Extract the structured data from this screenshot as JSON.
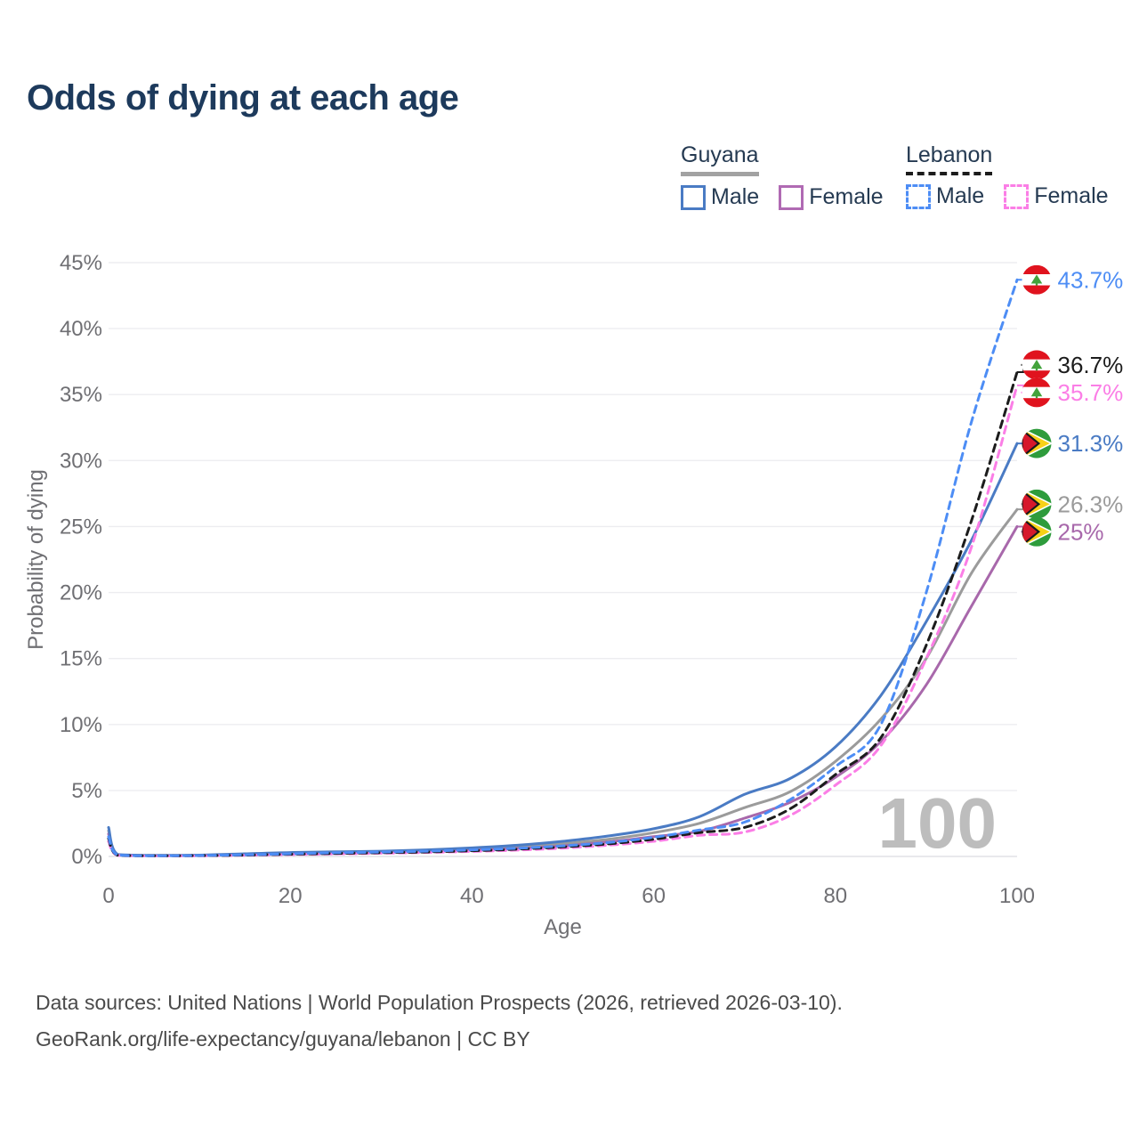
{
  "title": "Odds of dying at each age",
  "legend": {
    "groups": [
      {
        "label": "Guyana",
        "line_dashed": false,
        "line_color": "#a2a2a2",
        "items": [
          {
            "label": "Male",
            "color": "#4a7bc4",
            "dashed": false
          },
          {
            "label": "Female",
            "color": "#b06ab3",
            "dashed": false
          }
        ]
      },
      {
        "label": "Lebanon",
        "line_dashed": true,
        "line_color": "#1c1c1c",
        "items": [
          {
            "label": "Male",
            "color": "#4d8df5",
            "dashed": true
          },
          {
            "label": "Female",
            "color": "#fb7ee6",
            "dashed": true
          }
        ]
      }
    ]
  },
  "chart_data": {
    "type": "line",
    "title": "Odds of dying at each age",
    "xlabel": "Age",
    "ylabel": "Probability of dying",
    "xlim": [
      0,
      100
    ],
    "ylim": [
      0,
      45
    ],
    "x_ticks": [
      0,
      20,
      40,
      60,
      80,
      100
    ],
    "y_ticks": [
      0,
      5,
      10,
      15,
      20,
      25,
      30,
      35,
      40,
      45
    ],
    "y_tick_suffix": "%",
    "grid": "horizontal",
    "legend_position": "top-right",
    "watermark_age": "100",
    "ages": [
      0,
      1,
      5,
      10,
      15,
      20,
      25,
      30,
      35,
      40,
      45,
      50,
      55,
      60,
      65,
      70,
      75,
      80,
      85,
      90,
      95,
      100
    ],
    "series": [
      {
        "name": "Guyana (both sexes)",
        "country": "Guyana",
        "sex": "Both",
        "color": "#9b9b9b",
        "dashed": false,
        "flag": "guyana",
        "end_label": "26.3%",
        "values": [
          1.95,
          0.13,
          0.07,
          0.09,
          0.16,
          0.24,
          0.29,
          0.34,
          0.42,
          0.55,
          0.72,
          0.97,
          1.3,
          1.8,
          2.5,
          3.7,
          4.9,
          7.2,
          10.4,
          15.0,
          21.5,
          26.3
        ]
      },
      {
        "name": "Guyana Female",
        "country": "Guyana",
        "sex": "Female",
        "color": "#a868ab",
        "dashed": false,
        "flag": "guyana",
        "end_label": "25%",
        "values": [
          1.7,
          0.12,
          0.06,
          0.08,
          0.12,
          0.18,
          0.22,
          0.28,
          0.35,
          0.45,
          0.6,
          0.8,
          1.1,
          1.5,
          1.9,
          2.9,
          4.1,
          6.0,
          8.7,
          13.0,
          19.0,
          25.0
        ]
      },
      {
        "name": "Guyana Male",
        "country": "Guyana",
        "sex": "Male",
        "color": "#4a7bc4",
        "dashed": false,
        "flag": "guyana",
        "end_label": "31.3%",
        "values": [
          2.2,
          0.15,
          0.08,
          0.1,
          0.2,
          0.3,
          0.35,
          0.4,
          0.5,
          0.65,
          0.85,
          1.15,
          1.55,
          2.1,
          3.0,
          4.7,
          5.9,
          8.3,
          12.2,
          17.8,
          24.0,
          31.3
        ]
      },
      {
        "name": "Lebanon Female",
        "country": "Lebanon",
        "sex": "Female",
        "color": "#fb7ee6",
        "dashed": true,
        "flag": "lebanon",
        "end_label": "35.7%",
        "values": [
          1.15,
          0.08,
          0.04,
          0.05,
          0.09,
          0.14,
          0.19,
          0.24,
          0.3,
          0.38,
          0.48,
          0.63,
          0.85,
          1.15,
          1.6,
          1.85,
          3.1,
          5.4,
          8.4,
          15.0,
          23.5,
          35.7
        ]
      },
      {
        "name": "Lebanon (both sexes)",
        "country": "Lebanon",
        "sex": "Both",
        "color": "#1c1c1c",
        "dashed": true,
        "flag": "lebanon",
        "end_label": "36.7%",
        "values": [
          1.35,
          0.09,
          0.05,
          0.06,
          0.1,
          0.17,
          0.23,
          0.28,
          0.34,
          0.43,
          0.55,
          0.72,
          0.95,
          1.3,
          1.8,
          2.2,
          3.6,
          6.2,
          9.0,
          16.0,
          25.5,
          36.7
        ]
      },
      {
        "name": "Lebanon Male",
        "country": "Lebanon",
        "sex": "Male",
        "color": "#4d8df5",
        "dashed": true,
        "flag": "lebanon",
        "end_label": "43.7%",
        "values": [
          1.5,
          0.1,
          0.05,
          0.07,
          0.12,
          0.2,
          0.28,
          0.33,
          0.4,
          0.5,
          0.62,
          0.8,
          1.05,
          1.45,
          2.0,
          2.6,
          4.3,
          6.8,
          10.0,
          20.0,
          33.0,
          43.7
        ]
      }
    ],
    "flag_colors": {
      "lebanon_red": "#e0131e",
      "lebanon_white": "#ffffff",
      "cedar_green": "#43a33c",
      "guyana_green": "#2e9c3c",
      "guyana_gold": "#f7d117",
      "guyana_red": "#d6182c",
      "guyana_black": "#17191c"
    }
  },
  "footer": {
    "line1": "Data sources: United Nations | World Population Prospects (2026, retrieved 2026-03-10).",
    "line2": "GeoRank.org/life-expectancy/guyana/lebanon | CC BY"
  }
}
